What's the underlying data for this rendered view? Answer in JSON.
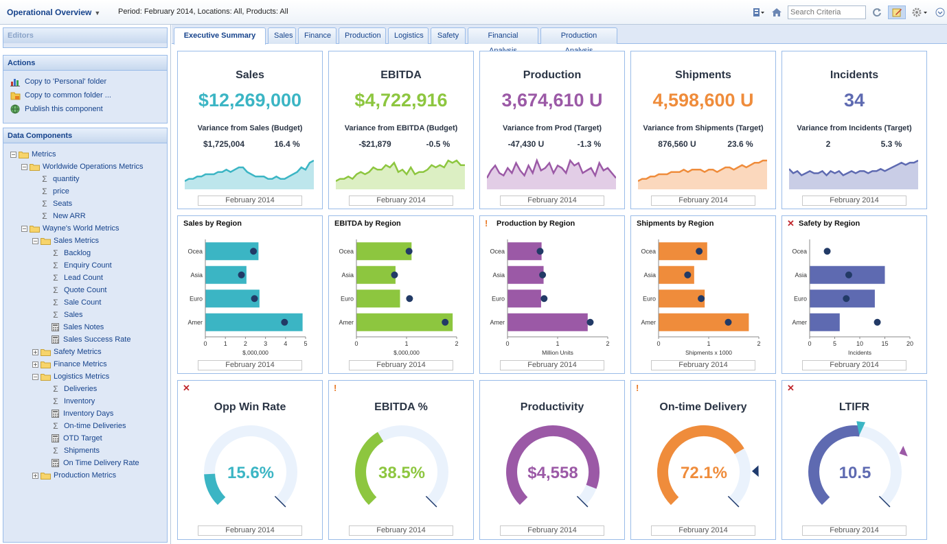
{
  "header": {
    "title": "Operational Overview",
    "period_text": "Period: February 2014, Locations: All, Products: All",
    "search_placeholder": "Search Criteria"
  },
  "sidebar": {
    "editors_title": "Editors",
    "actions_title": "Actions",
    "actions": [
      {
        "label": "Copy to 'Personal' folder",
        "icon": "chart-icon"
      },
      {
        "label": "Copy to common folder ...",
        "icon": "folder-copy-icon"
      },
      {
        "label": "Publish this component",
        "icon": "globe-icon"
      }
    ],
    "data_components_title": "Data Components",
    "tree": [
      {
        "label": "Metrics",
        "type": "folder",
        "depth": 0,
        "toggle": "-"
      },
      {
        "label": "Worldwide Operations Metrics",
        "type": "folder",
        "depth": 1,
        "toggle": "-"
      },
      {
        "label": "quantity",
        "type": "sigma",
        "depth": 2
      },
      {
        "label": "price",
        "type": "sigma",
        "depth": 2
      },
      {
        "label": "Seats",
        "type": "sigma",
        "depth": 2
      },
      {
        "label": "New ARR",
        "type": "sigma",
        "depth": 2
      },
      {
        "label": "Wayne's World Metrics",
        "type": "folder",
        "depth": 1,
        "toggle": "-"
      },
      {
        "label": "Sales Metrics",
        "type": "folder",
        "depth": 2,
        "toggle": "-"
      },
      {
        "label": "Backlog",
        "type": "sigma",
        "depth": 3
      },
      {
        "label": "Enquiry Count",
        "type": "sigma",
        "depth": 3
      },
      {
        "label": "Lead Count",
        "type": "sigma",
        "depth": 3
      },
      {
        "label": "Quote Count",
        "type": "sigma",
        "depth": 3
      },
      {
        "label": "Sale Count",
        "type": "sigma",
        "depth": 3
      },
      {
        "label": "Sales",
        "type": "sigma",
        "depth": 3
      },
      {
        "label": "Sales Notes",
        "type": "calc",
        "depth": 3
      },
      {
        "label": "Sales Success Rate",
        "type": "calc",
        "depth": 3
      },
      {
        "label": "Safety Metrics",
        "type": "folder",
        "depth": 2,
        "toggle": "+"
      },
      {
        "label": "Finance Metrics",
        "type": "folder",
        "depth": 2,
        "toggle": "+"
      },
      {
        "label": "Logistics Metrics",
        "type": "folder",
        "depth": 2,
        "toggle": "-"
      },
      {
        "label": "Deliveries",
        "type": "sigma",
        "depth": 3
      },
      {
        "label": "Inventory",
        "type": "sigma",
        "depth": 3
      },
      {
        "label": "Inventory Days",
        "type": "calc",
        "depth": 3
      },
      {
        "label": "On-time Deliveries",
        "type": "sigma",
        "depth": 3
      },
      {
        "label": "OTD Target",
        "type": "calc",
        "depth": 3
      },
      {
        "label": "Shipments",
        "type": "sigma",
        "depth": 3
      },
      {
        "label": "On Time Delivery Rate",
        "type": "calc",
        "depth": 3
      },
      {
        "label": "Production Metrics",
        "type": "folder",
        "depth": 2,
        "toggle": "+"
      }
    ]
  },
  "tabs": [
    "Executive Summary",
    "Sales",
    "Finance",
    "Production",
    "Logistics",
    "Safety",
    "Financial Analysis",
    "Production Analysis"
  ],
  "active_tab": "Executive Summary",
  "footer_label": "February 2014",
  "kpis": [
    {
      "title": "Sales",
      "value": "$12,269,000",
      "color": "#3bb5c4",
      "fill": "#bde6ec",
      "variance_label": "Variance from Sales (Budget)",
      "v1": "$1,725,004",
      "v2": "16.4 %",
      "spark": [
        3,
        4,
        4,
        5,
        5,
        6,
        6,
        6,
        7,
        7,
        8,
        7,
        8,
        9,
        9,
        7,
        6,
        5,
        5,
        5,
        4,
        4,
        5,
        4,
        4,
        5,
        6,
        7,
        9,
        8,
        11,
        12
      ]
    },
    {
      "title": "EBITDA",
      "value": "$4,722,916",
      "color": "#8dc63f",
      "fill": "#dcefc3",
      "variance_label": "Variance from EBITDA (Budget)",
      "v1": "-$21,879",
      "v2": "-0.5 %",
      "spark": [
        3,
        4,
        4,
        5,
        4,
        6,
        7,
        6,
        7,
        9,
        8,
        8,
        10,
        9,
        11,
        7,
        8,
        6,
        9,
        6,
        7,
        7,
        8,
        10,
        9,
        10,
        9,
        12,
        11,
        12,
        10,
        10
      ]
    },
    {
      "title": "Production",
      "value": "3,674,610 U",
      "color": "#9b59a6",
      "fill": "#e2cde6",
      "variance_label": "Variance from Prod (Target)",
      "v1": "-47,430 U",
      "v2": "-1.3 %",
      "spark": [
        4,
        7,
        9,
        6,
        5,
        8,
        6,
        10,
        7,
        5,
        9,
        6,
        11,
        7,
        8,
        10,
        6,
        9,
        8,
        6,
        11,
        9,
        10,
        6,
        7,
        8,
        5,
        10,
        7,
        8,
        6,
        4
      ]
    },
    {
      "title": "Shipments",
      "value": "4,598,600 U",
      "color": "#ef8c3b",
      "fill": "#fbd8bd",
      "variance_label": "Variance from Shipments (Target)",
      "v1": "876,560 U",
      "v2": "23.6 %",
      "spark": [
        3,
        4,
        4,
        5,
        5,
        6,
        6,
        6,
        7,
        7,
        7,
        8,
        7,
        8,
        8,
        8,
        7,
        8,
        8,
        7,
        8,
        9,
        9,
        8,
        9,
        10,
        9,
        10,
        11,
        11,
        12,
        12
      ]
    },
    {
      "title": "Incidents",
      "value": "34",
      "color": "#5e6ab1",
      "fill": "#c9cde6",
      "variance_label": "Variance from Incidents (Target)",
      "v1": "2",
      "v2": "5.3 %",
      "spark": [
        9,
        7,
        8,
        6,
        7,
        8,
        7,
        7,
        8,
        6,
        8,
        7,
        8,
        6,
        7,
        8,
        7,
        8,
        8,
        7,
        8,
        8,
        9,
        8,
        9,
        10,
        11,
        12,
        11,
        12,
        12,
        13
      ]
    }
  ],
  "chart_data": [
    {
      "type": "bar",
      "title": "Sales by Region",
      "indicator": "",
      "categories": [
        "Ocea",
        "Asia",
        "Euro",
        "Amer"
      ],
      "values": [
        2.65,
        2.05,
        2.7,
        4.85
      ],
      "targets": [
        2.4,
        1.8,
        2.45,
        3.95
      ],
      "xlim": [
        0,
        5
      ],
      "ticks": [
        0,
        1,
        2,
        3,
        4,
        5
      ],
      "xlabel": "$,000,000",
      "color": "#3bb5c4"
    },
    {
      "type": "bar",
      "title": "EBITDA by Region",
      "indicator": "",
      "categories": [
        "Ocea",
        "Asia",
        "Euro",
        "Amer"
      ],
      "values": [
        1.1,
        0.78,
        0.87,
        1.92
      ],
      "targets": [
        1.05,
        0.76,
        1.06,
        1.77
      ],
      "xlim": [
        0,
        2
      ],
      "ticks": [
        0,
        1,
        2
      ],
      "xlabel": "$,000,000",
      "color": "#8dc63f"
    },
    {
      "type": "bar",
      "title": "Production by Region",
      "indicator": "warn",
      "categories": [
        "Ocea",
        "Asia",
        "Euro",
        "Amer"
      ],
      "values": [
        0.68,
        0.72,
        0.67,
        1.6
      ],
      "targets": [
        0.65,
        0.7,
        0.73,
        1.65
      ],
      "xlim": [
        0,
        2
      ],
      "ticks": [
        0,
        1,
        2
      ],
      "xlabel": "Million Units",
      "color": "#9b59a6"
    },
    {
      "type": "bar",
      "title": "Shipments by Region",
      "indicator": "",
      "categories": [
        "Ocea",
        "Asia",
        "Euro",
        "Amer"
      ],
      "values": [
        0.97,
        0.71,
        0.92,
        1.8
      ],
      "targets": [
        0.81,
        0.58,
        0.85,
        1.39
      ],
      "xlim": [
        0,
        2
      ],
      "ticks": [
        0,
        1,
        2
      ],
      "xlabel": "Shipments x 1000",
      "color": "#ef8c3b"
    },
    {
      "type": "bar",
      "title": "Safety by Region",
      "indicator": "fail",
      "categories": [
        "Ocea",
        "Asia",
        "Euro",
        "Amer"
      ],
      "values": [
        0,
        15,
        13,
        6
      ],
      "targets": [
        3.5,
        7.8,
        7.3,
        13.5
      ],
      "xlim": [
        0,
        20
      ],
      "ticks": [
        0,
        5,
        10,
        15,
        20
      ],
      "xlabel": "Incidents",
      "color": "#5e6ab1"
    }
  ],
  "gauges": [
    {
      "title": "Opp Win Rate",
      "value_text": "15.6%",
      "value": 15.6,
      "max": 100,
      "min_label": "0",
      "max_label": "100",
      "target": null,
      "marker": "",
      "color": "#3bb5c4",
      "indicator": "fail"
    },
    {
      "title": "EBITDA %",
      "value_text": "38.5%",
      "value": 38.5,
      "max": 100,
      "min_label": "0",
      "max_label": "100",
      "target": null,
      "marker": "",
      "color": "#8dc63f",
      "indicator": "warn"
    },
    {
      "title": "Productivity",
      "value_text": "$4,558",
      "value": 4558,
      "max": 5000,
      "min_label": "0",
      "max_label": "5000",
      "target": null,
      "marker": "",
      "color": "#9b59a6",
      "indicator": ""
    },
    {
      "title": "On-time Delivery",
      "value_text": "72.1%",
      "value": 72.1,
      "max": 100,
      "min_label": "0",
      "max_label": "100",
      "target": 83,
      "marker": "#1f3a6d",
      "color": "#ef8c3b",
      "indicator": "warn"
    },
    {
      "title": "LTIFR",
      "value_text": "10.5",
      "value": 10.5,
      "max": 20,
      "min_label": "0",
      "max_label": "20",
      "target": 15,
      "marker": "#9b59a6",
      "color": "#5e6ab1",
      "indicator": "fail",
      "top_marker": "#3bb5c4"
    }
  ],
  "colors": {
    "accent": "#15428b",
    "panel": "#dfe8f6",
    "border": "#99bbe8",
    "dot": "#223a66",
    "gauge_track": "#eaf2fc",
    "warn": "#e87722",
    "fail": "#c0272d"
  }
}
